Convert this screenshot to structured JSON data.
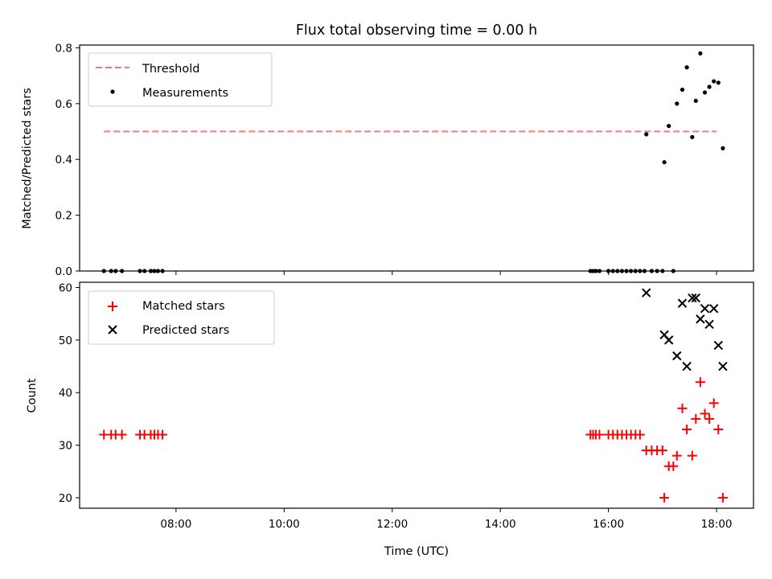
{
  "chart_data": [
    {
      "type": "scatter",
      "title": "Flux total observing time = 0.00 h",
      "xlabel": "",
      "ylabel": "Matched/Predicted stars",
      "xlim": [
        "06:13",
        "18:41"
      ],
      "ylim": [
        0,
        0.81
      ],
      "yticks": [
        "0.0",
        "0.2",
        "0.4",
        "0.6",
        "0.8"
      ],
      "xticks": [
        "08:00",
        "10:00",
        "12:00",
        "14:00",
        "16:00",
        "18:00"
      ],
      "xtick_labels_shown": false,
      "legend_position": "upper left",
      "threshold": {
        "name": "Threshold",
        "value": 0.5,
        "x": [
          "06:40",
          "18:00"
        ],
        "color": "#f47a7a",
        "style": "dashed"
      },
      "series": [
        {
          "name": "Measurements",
          "color": "#000000",
          "marker": "dot",
          "x": [
            "06:40",
            "06:48",
            "06:53",
            "07:00",
            "07:20",
            "07:25",
            "07:32",
            "07:36",
            "07:40",
            "07:45",
            "15:40",
            "15:43",
            "15:46",
            "15:50",
            "16:00",
            "16:05",
            "16:10",
            "16:15",
            "16:20",
            "16:25",
            "16:30",
            "16:35",
            "16:40",
            "16:48",
            "16:54",
            "17:00",
            "17:12",
            "16:42",
            "17:02",
            "17:07",
            "17:16",
            "17:22",
            "17:27",
            "17:33",
            "17:37",
            "17:42",
            "17:47",
            "17:52",
            "17:57",
            "18:02",
            "18:07"
          ],
          "y": [
            0,
            0,
            0,
            0,
            0,
            0,
            0,
            0,
            0,
            0,
            0,
            0,
            0,
            0,
            0,
            0,
            0,
            0,
            0,
            0,
            0,
            0,
            0,
            0,
            0,
            0,
            0,
            0.49,
            0.39,
            0.52,
            0.6,
            0.65,
            0.73,
            0.48,
            0.61,
            0.78,
            0.64,
            0.66,
            0.68,
            0.675,
            0.44
          ]
        }
      ]
    },
    {
      "type": "scatter",
      "title": "",
      "xlabel": "Time (UTC)",
      "ylabel": "Count",
      "xlim": [
        "06:13",
        "18:41"
      ],
      "ylim": [
        18,
        61
      ],
      "yticks": [
        "20",
        "30",
        "40",
        "50",
        "60"
      ],
      "xticks": [
        "08:00",
        "10:00",
        "12:00",
        "14:00",
        "16:00",
        "18:00"
      ],
      "xtick_labels_shown": true,
      "legend_position": "upper left",
      "series": [
        {
          "name": "Matched stars",
          "color": "#ff0000",
          "marker": "plus",
          "x": [
            "06:40",
            "06:48",
            "06:53",
            "07:00",
            "07:20",
            "07:25",
            "07:32",
            "07:36",
            "07:40",
            "07:45",
            "15:40",
            "15:43",
            "15:46",
            "15:50",
            "16:00",
            "16:05",
            "16:10",
            "16:15",
            "16:20",
            "16:25",
            "16:30",
            "16:35",
            "16:42",
            "16:48",
            "16:54",
            "17:00",
            "17:02",
            "17:07",
            "17:12",
            "17:16",
            "17:22",
            "17:27",
            "17:33",
            "17:37",
            "17:42",
            "17:47",
            "17:52",
            "17:57",
            "18:02",
            "18:07"
          ],
          "y": [
            32,
            32,
            32,
            32,
            32,
            32,
            32,
            32,
            32,
            32,
            32,
            32,
            32,
            32,
            32,
            32,
            32,
            32,
            32,
            32,
            32,
            32,
            29,
            29,
            29,
            29,
            20,
            26,
            26,
            28,
            37,
            33,
            28,
            35,
            42,
            36,
            35,
            38,
            33,
            20
          ]
        },
        {
          "name": "Predicted stars",
          "color": "#000000",
          "marker": "x",
          "x": [
            "16:42",
            "17:02",
            "17:07",
            "17:16",
            "17:22",
            "17:27",
            "17:33",
            "17:37",
            "17:42",
            "17:47",
            "17:52",
            "17:57",
            "18:02",
            "18:07"
          ],
          "y": [
            59,
            51,
            50,
            47,
            57,
            45,
            58,
            58,
            54,
            56,
            53,
            56,
            49,
            45
          ]
        }
      ]
    }
  ]
}
